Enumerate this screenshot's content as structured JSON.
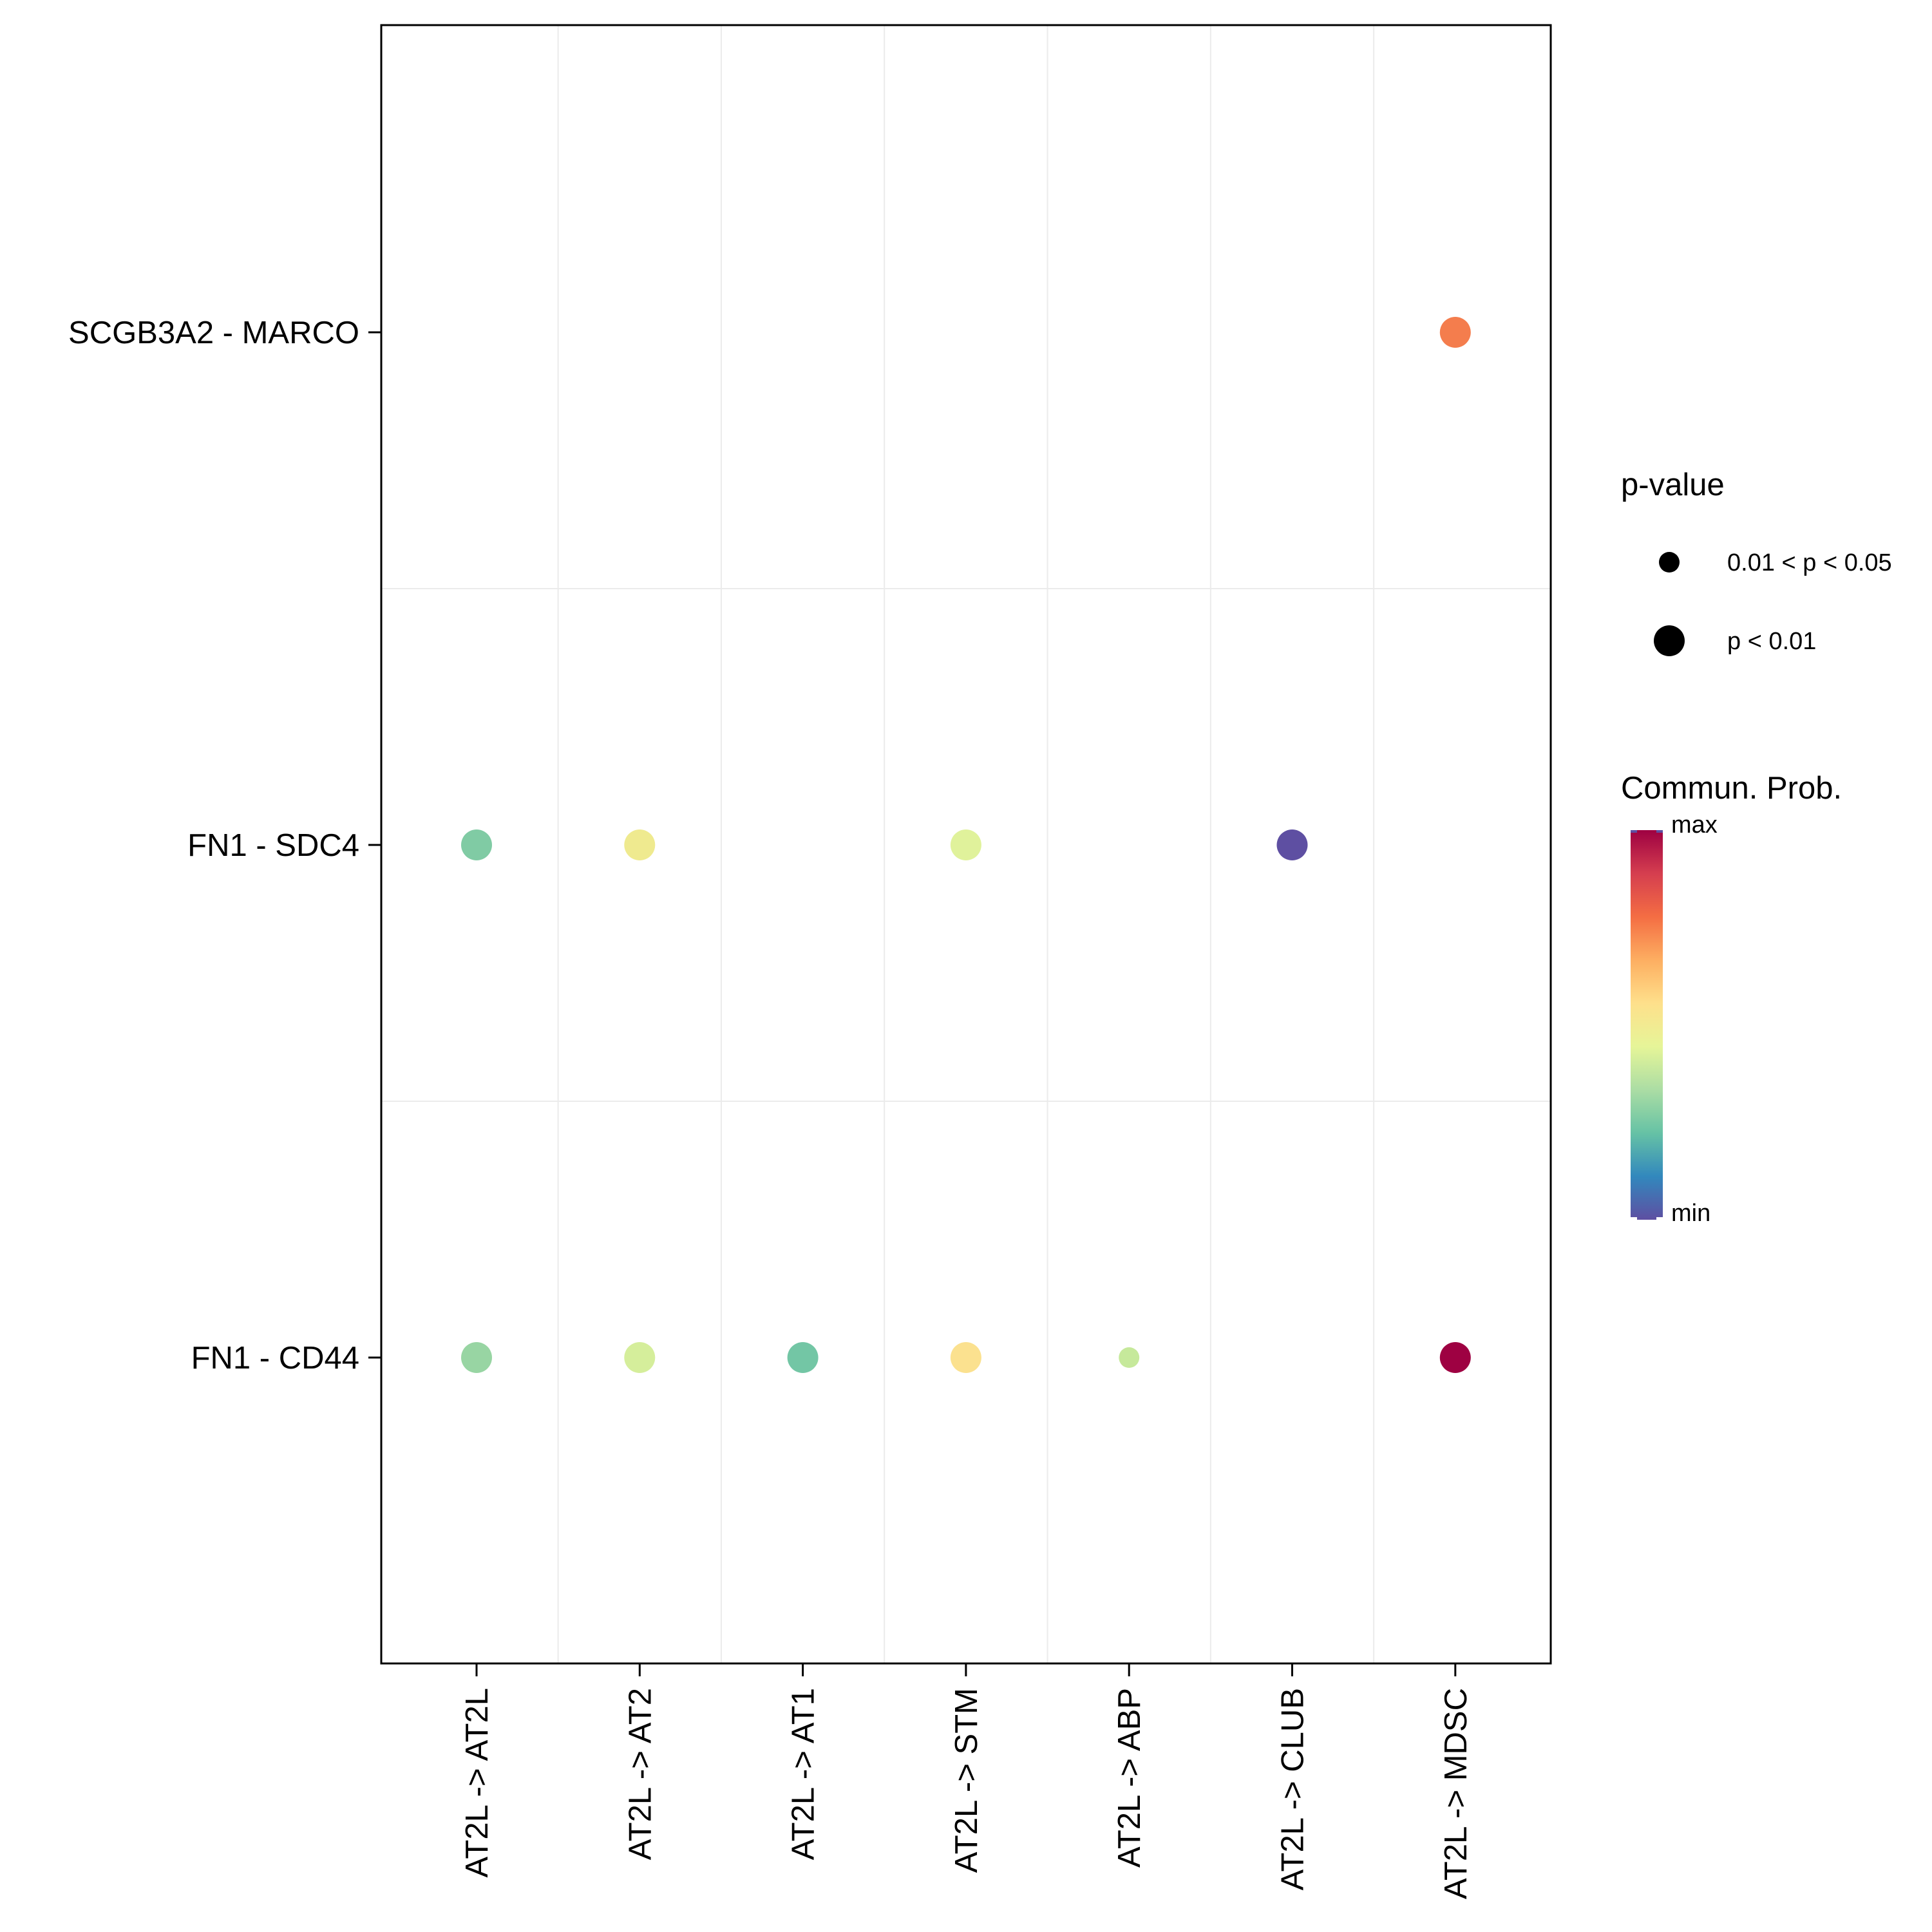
{
  "chart_data": {
    "type": "scatter",
    "title": "",
    "xlabel": "",
    "ylabel": "",
    "x_categories": [
      "AT2L -> AT2L",
      "AT2L -> AT2",
      "AT2L -> AT1",
      "AT2L -> STM",
      "AT2L -> ABP",
      "AT2L -> CLUB",
      "AT2L -> MDSC"
    ],
    "y_categories": [
      "SCGB3A2 - MARCO",
      "FN1 - SDC4",
      "FN1 - CD44"
    ],
    "points": [
      {
        "x": "AT2L -> MDSC",
        "y": "SCGB3A2 - MARCO",
        "prob": 0.85,
        "pvalue": "p < 0.01",
        "color": "#f47d4d"
      },
      {
        "x": "AT2L -> AT2L",
        "y": "FN1 - SDC4",
        "prob": 0.3,
        "pvalue": "p < 0.01",
        "color": "#80cba4"
      },
      {
        "x": "AT2L -> AT2",
        "y": "FN1 - SDC4",
        "prob": 0.52,
        "pvalue": "p < 0.01",
        "color": "#efea8f"
      },
      {
        "x": "AT2L -> STM",
        "y": "FN1 - SDC4",
        "prob": 0.47,
        "pvalue": "p < 0.01",
        "color": "#e0f29b"
      },
      {
        "x": "AT2L -> CLUB",
        "y": "FN1 - SDC4",
        "prob": 0.0,
        "pvalue": "p < 0.01",
        "color": "#5e4fa2"
      },
      {
        "x": "AT2L -> AT2L",
        "y": "FN1 - CD44",
        "prob": 0.35,
        "pvalue": "p < 0.01",
        "color": "#98d5a3"
      },
      {
        "x": "AT2L -> AT2",
        "y": "FN1 - CD44",
        "prob": 0.45,
        "pvalue": "p < 0.01",
        "color": "#d5ee9b"
      },
      {
        "x": "AT2L -> AT1",
        "y": "FN1 - CD44",
        "prob": 0.27,
        "pvalue": "p < 0.01",
        "color": "#73c6a5"
      },
      {
        "x": "AT2L -> STM",
        "y": "FN1 - CD44",
        "prob": 0.58,
        "pvalue": "p < 0.01",
        "color": "#fbe18f"
      },
      {
        "x": "AT2L -> ABP",
        "y": "FN1 - CD44",
        "prob": 0.42,
        "pvalue": "0.01 < p < 0.05",
        "color": "#c6e99b"
      },
      {
        "x": "AT2L -> MDSC",
        "y": "FN1 - CD44",
        "prob": 1.0,
        "pvalue": "p < 0.01",
        "color": "#9e0142"
      }
    ],
    "legend_size": {
      "title": "p-value",
      "entries": [
        "0.01 < p < 0.05",
        "p < 0.01"
      ],
      "position": "right"
    },
    "legend_color": {
      "title": "Commun. Prob.",
      "max_label": "max",
      "min_label": "min",
      "colormap": "Spectral",
      "stops": [
        "#5e4fa2",
        "#3288bd",
        "#66c2a5",
        "#abdda4",
        "#e6f598",
        "#fee08b",
        "#fdae61",
        "#f46d43",
        "#d53e4f",
        "#9e0142"
      ],
      "position": "right"
    },
    "grid": true
  }
}
